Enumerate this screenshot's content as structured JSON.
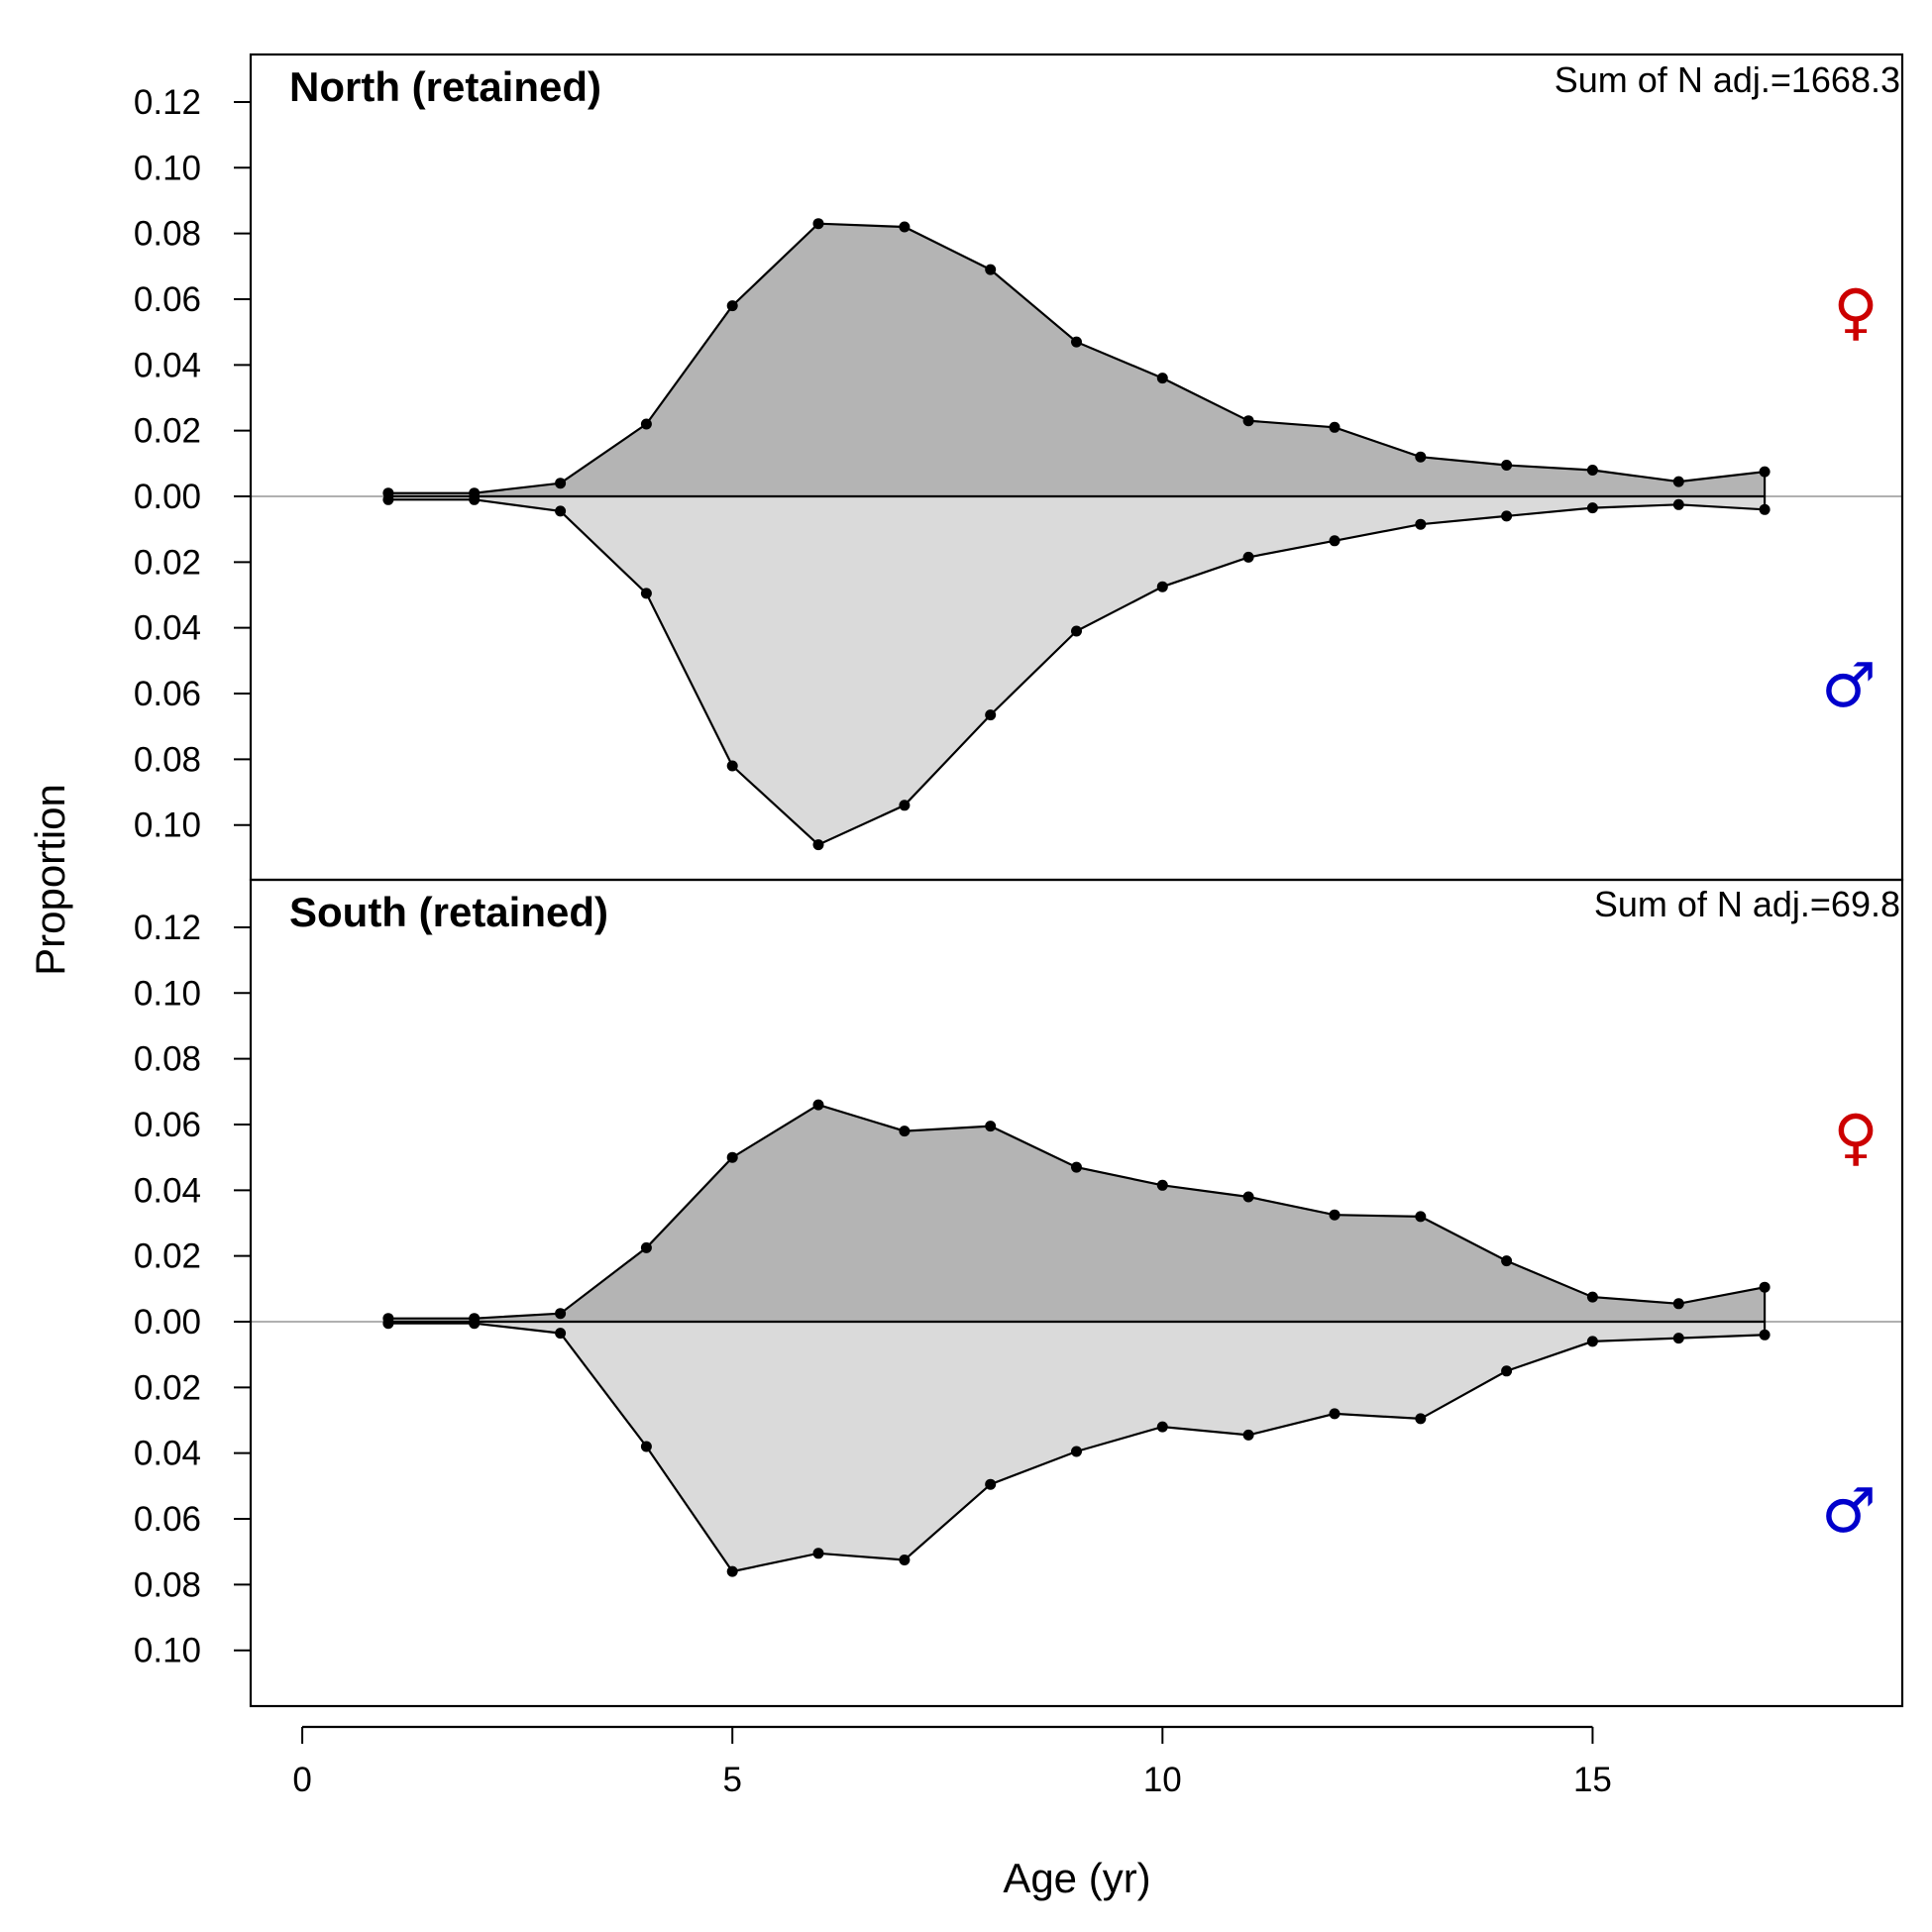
{
  "chart_data": {
    "type": "area",
    "xlabel": "Age (yr)",
    "ylabel": "Proportion",
    "xlim": [
      -0.6,
      18.6
    ],
    "x_ticks": [
      "0",
      "5",
      "10",
      "15"
    ],
    "y_ticks_up": [
      "0.00",
      "0.02",
      "0.04",
      "0.06",
      "0.08",
      "0.10",
      "0.12"
    ],
    "y_ticks_down_top": [
      "0.02",
      "0.04",
      "0.06",
      "0.08",
      "0.10"
    ],
    "y_ticks_down_bottom": [
      "0.02",
      "0.04",
      "0.06",
      "0.08",
      "0.10"
    ],
    "ylim": [
      -0.116,
      0.135
    ],
    "grid": false,
    "colors": {
      "female_fill": "#b4b4b4",
      "male_fill": "#dadada",
      "female_symbol": "#cc0000",
      "male_symbol": "#0000cc",
      "zero_line": "#b0b0b0"
    },
    "symbols": {
      "female": "♀",
      "male": "♂"
    },
    "panels": [
      {
        "title": "North (retained)",
        "sum_label": "Sum of N adj.=1668.3",
        "x": [
          1,
          2,
          3,
          4,
          5,
          6,
          7,
          8,
          9,
          10,
          11,
          12,
          13,
          14,
          15,
          16,
          17
        ],
        "series": [
          {
            "sex": "female",
            "values": [
              0.001,
              0.001,
              0.004,
              0.022,
              0.058,
              0.083,
              0.082,
              0.069,
              0.047,
              0.036,
              0.023,
              0.021,
              0.012,
              0.0095,
              0.008,
              0.0045,
              0.0075
            ]
          },
          {
            "sex": "male",
            "values": [
              0.001,
              0.001,
              0.0045,
              0.0295,
              0.082,
              0.106,
              0.094,
              0.0665,
              0.041,
              0.0275,
              0.0185,
              0.0135,
              0.0085,
              0.006,
              0.0035,
              0.0025,
              0.004
            ]
          }
        ]
      },
      {
        "title": "South (retained)",
        "sum_label": "Sum of N adj.=69.8",
        "x": [
          1,
          2,
          3,
          4,
          5,
          6,
          7,
          8,
          9,
          10,
          11,
          12,
          13,
          14,
          15,
          16,
          17
        ],
        "series": [
          {
            "sex": "female",
            "values": [
              0.001,
              0.001,
              0.0025,
              0.0225,
              0.05,
              0.066,
              0.058,
              0.0595,
              0.047,
              0.0415,
              0.038,
              0.0325,
              0.032,
              0.0185,
              0.0075,
              0.0055,
              0.0105
            ]
          },
          {
            "sex": "male",
            "values": [
              0.0005,
              0.0005,
              0.0035,
              0.038,
              0.076,
              0.0705,
              0.0725,
              0.0495,
              0.0395,
              0.032,
              0.0345,
              0.028,
              0.0295,
              0.015,
              0.006,
              0.005,
              0.004
            ]
          }
        ]
      }
    ]
  }
}
